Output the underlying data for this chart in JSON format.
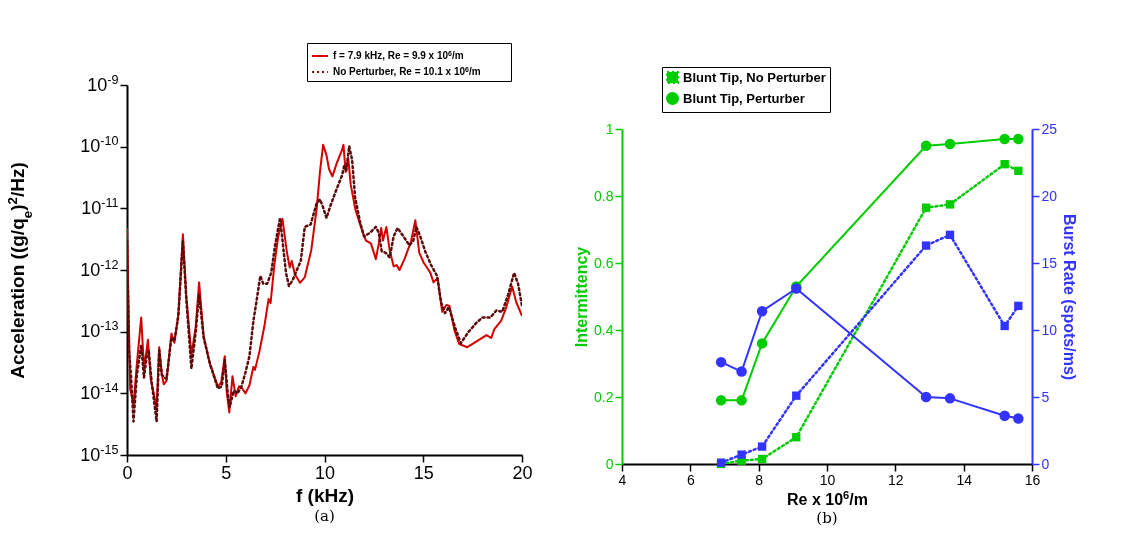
{
  "chart_data": [
    {
      "type": "line",
      "xlabel": "f (kHz)",
      "ylabel": "Acceleration ((g/q$_{e}$)$^{2}$/Hz)",
      "annotations": [
        "(a)"
      ],
      "log": "y",
      "legend": "top right",
      "xlim": [
        0,
        20
      ],
      "xticks": [
        0,
        5,
        10,
        15,
        20
      ],
      "ylim": [
        1e-15,
        1e-09
      ],
      "yticks": [
        {
          "value": 1e-15,
          "label": "10$^{-15}$"
        },
        {
          "value": 1e-14,
          "label": "10$^{-14}$"
        },
        {
          "value": 1e-13,
          "label": "10$^{-13}$"
        },
        {
          "value": 1e-12,
          "label": "10$^{-12}$"
        },
        {
          "value": 1e-11,
          "label": "10$^{-11}$"
        },
        {
          "value": 1e-10,
          "label": "10$^{-10}$"
        },
        {
          "value": 1e-09,
          "label": "10$^{-9}$"
        }
      ],
      "marker": "none",
      "series": [
        {
          "name": "f = 7.9 kHz, Re = 9.9 x 10$^{6}$/m",
          "color": "#d40000",
          "line_style": "solid",
          "x": [
            0,
            0.16,
            0.33,
            0.5,
            0.72,
            0.86,
            0.98,
            1.06,
            1.2,
            1.3,
            1.5,
            1.63,
            1.76,
            1.86,
            2.0,
            2.25,
            2.4,
            2.6,
            2.83,
            3.0,
            3.26,
            3.48,
            3.65,
            3.88,
            4.2,
            4.6,
            4.77,
            4.95,
            5.05,
            5.18,
            5.34,
            5.5,
            5.67,
            5.83,
            6.0,
            6.2,
            6.4,
            6.48,
            6.7,
            6.95,
            7.17,
            7.27,
            7.46,
            7.65,
            7.87,
            8.1,
            8.24,
            8.34,
            8.5,
            8.76,
            9.0,
            9.33,
            9.6,
            9.77,
            9.93,
            10.1,
            10.23,
            10.4,
            10.63,
            10.88,
            10.96,
            11.07,
            11.2,
            11.33,
            11.56,
            11.86,
            12.1,
            12.35,
            12.6,
            12.75,
            12.87,
            12.96,
            13.13,
            13.3,
            13.5,
            13.65,
            13.8,
            14.05,
            14.38,
            14.6,
            14.8,
            15.03,
            15.36,
            15.52,
            15.73,
            15.96,
            16.17,
            16.33,
            16.58,
            16.82,
            17.23,
            17.72,
            18.2,
            18.44,
            18.6,
            18.94,
            19.19,
            19.5,
            19.71,
            20
          ],
          "values": [
            4.8e-12,
            1.2e-14,
            6.6e-15,
            3e-14,
            1.7e-13,
            2.6e-14,
            4.7e-14,
            7.4e-14,
            1.7e-14,
            1.2e-14,
            5.9e-15,
            5.6e-14,
            2.1e-14,
            1.4e-14,
            1.6e-14,
            9.3e-14,
            6.6e-14,
            1.9e-13,
            3.8e-12,
            3.8e-13,
            4.2e-14,
            1.2e-13,
            6.3e-13,
            8.5e-14,
            3e-14,
            1.3e-14,
            1.5e-14,
            4e-14,
            1.05e-14,
            4.9e-15,
            1.9e-14,
            9e-15,
            1.3e-14,
            1.2e-14,
            1e-14,
            1.35e-14,
            2.7e-14,
            2.4e-14,
            4.7e-14,
            1.2e-13,
            3.4e-13,
            2.9e-13,
            1.2e-12,
            3.4e-12,
            6.8e-12,
            1.9e-12,
            1.1e-12,
            1.4e-12,
            8.5e-13,
            6.2e-13,
            7.6e-13,
            2.1e-12,
            9.6e-12,
            3.9e-11,
            1.07e-10,
            7.3e-11,
            4.3e-11,
            3.3e-11,
            5.5e-11,
            8.7e-11,
            1.07e-10,
            3.9e-11,
            6.5e-11,
            2.4e-11,
            9.7e-12,
            4.8e-12,
            3e-12,
            2.7e-12,
            1.5e-12,
            2.7e-12,
            4.8e-12,
            3e-12,
            5e-12,
            2.1e-12,
            1.15e-12,
            1.2e-12,
            1e-12,
            1.5e-12,
            2.9e-12,
            6.4e-12,
            1.9e-12,
            1.3e-12,
            9e-13,
            6.3e-13,
            7.4e-13,
            2.1e-13,
            2.7e-13,
            2.6e-13,
            1.05e-13,
            6.3e-14,
            5.6e-14,
            7e-14,
            8.8e-14,
            7.9e-14,
            1.1e-13,
            1.5e-13,
            2.4e-13,
            5.4e-13,
            3e-13,
            1.8e-13
          ]
        },
        {
          "name": "No Perturber, Re = 10.1 x 10$^{6}$/m",
          "color": "#5c0a0a",
          "line_style": "dotted",
          "x": [
            0,
            0.1,
            0.2,
            0.33,
            0.5,
            0.72,
            0.86,
            1.0,
            1.1,
            1.25,
            1.5,
            1.63,
            1.76,
            2.0,
            2.25,
            2.4,
            2.6,
            2.83,
            3.0,
            3.26,
            3.48,
            3.65,
            3.88,
            4.2,
            4.6,
            4.8,
            4.95,
            5.1,
            5.2,
            5.4,
            5.6,
            5.8,
            6.0,
            6.2,
            6.4,
            6.55,
            6.75,
            6.9,
            7.1,
            7.3,
            7.5,
            7.75,
            7.9,
            8.05,
            8.2,
            8.4,
            8.6,
            8.8,
            9.0,
            9.3,
            9.6,
            9.77,
            9.9,
            10.1,
            10.3,
            10.6,
            10.9,
            11.0,
            11.1,
            11.25,
            11.4,
            11.55,
            11.8,
            12.0,
            12.3,
            12.6,
            12.75,
            12.9,
            13.1,
            13.3,
            13.5,
            13.7,
            14.0,
            14.3,
            14.5,
            14.65,
            14.85,
            15.1,
            15.4,
            15.7,
            15.9,
            16.1,
            16.3,
            16.6,
            16.9,
            17.3,
            17.7,
            18.0,
            18.4,
            18.7,
            19.0,
            19.3,
            19.6,
            19.8,
            20
          ],
          "values": [
            3e-12,
            5e-14,
            2e-14,
            3.5e-15,
            2e-14,
            6e-14,
            1.8e-14,
            4e-14,
            5e-14,
            1.5e-14,
            3.5e-15,
            5e-14,
            2e-14,
            1.7e-14,
            8e-14,
            7e-14,
            1.8e-13,
            3e-12,
            3.5e-13,
            2.5e-14,
            1e-13,
            4e-13,
            8e-14,
            3e-14,
            1.2e-14,
            1.3e-14,
            3.5e-14,
            1e-14,
            6e-15,
            1.1e-14,
            1e-14,
            1.3e-14,
            2.2e-14,
            4e-14,
            1.5e-13,
            3e-13,
            8e-13,
            6e-13,
            6e-13,
            9e-13,
            2.5e-12,
            7e-12,
            2.5e-12,
            9e-13,
            5.5e-13,
            7e-13,
            1e-12,
            1.4e-12,
            5e-12,
            5.5e-12,
            1.2e-11,
            1.4e-11,
            1.1e-11,
            7e-12,
            1.1e-11,
            2e-11,
            3.5e-11,
            5e-11,
            4e-11,
            1.02e-10,
            6e-11,
            1.5e-11,
            6e-12,
            3.5e-12,
            4e-12,
            5e-12,
            4e-12,
            2e-12,
            1.9e-12,
            1.6e-12,
            3.5e-12,
            4.8e-12,
            3.5e-12,
            2.5e-12,
            3e-12,
            5e-12,
            3.5e-12,
            2e-12,
            1.2e-12,
            8e-13,
            3e-13,
            2e-13,
            2.5e-13,
            1.2e-13,
            6.5e-14,
            1e-13,
            1.4e-13,
            1.7e-13,
            1.7e-13,
            2.2e-13,
            2.1e-13,
            4e-13,
            9e-13,
            6e-13,
            2.6e-13
          ]
        }
      ]
    },
    {
      "type": "line",
      "xlabel": "Re x 10$^{6}$/m",
      "ylabel": "Intermittency",
      "y2label": "Burst Rate (spots/ms)",
      "annotations": [
        "(b)"
      ],
      "legend": "top",
      "xlim": [
        4,
        16
      ],
      "xticks": [
        4,
        6,
        8,
        10,
        12,
        14,
        16
      ],
      "ylim": [
        0,
        1
      ],
      "yticks": [
        0,
        0.2,
        0.4,
        0.6,
        0.8,
        1
      ],
      "y2lim": [
        0,
        25
      ],
      "y2ticks": [
        0,
        5,
        10,
        15,
        20,
        25
      ],
      "x": [
        6.9,
        7.5,
        8.1,
        9.1,
        12.9,
        13.6,
        15.2,
        15.6
      ],
      "series": [
        {
          "name": "Blunt Tip, No Perturber",
          "color": "#00cc00",
          "line_style": "dotted",
          "marker": "square",
          "values": [
            0,
            0.01,
            0.015,
            0.08,
            0.765,
            0.775,
            0.895,
            0.875
          ]
        },
        {
          "name": "Blunt Tip, Perturber",
          "color": "#00cc00",
          "line_style": "solid",
          "marker": "circle",
          "values": [
            0.19,
            0.19,
            0.36,
            0.53,
            0.95,
            0.955,
            0.97,
            0.97
          ]
        },
        {
          "color": "#3333ff",
          "line_style": "dotted",
          "marker": "square",
          "axis": "y2",
          "values": [
            0.1,
            0.7,
            1.3,
            5.1,
            16.3,
            17.1,
            10.3,
            11.8
          ]
        },
        {
          "color": "#3333ff",
          "line_style": "solid",
          "marker": "circle",
          "axis": "y2",
          "values": [
            7.6,
            6.9,
            11.4,
            13.1,
            5.0,
            4.9,
            3.6,
            3.4
          ]
        }
      ]
    }
  ]
}
